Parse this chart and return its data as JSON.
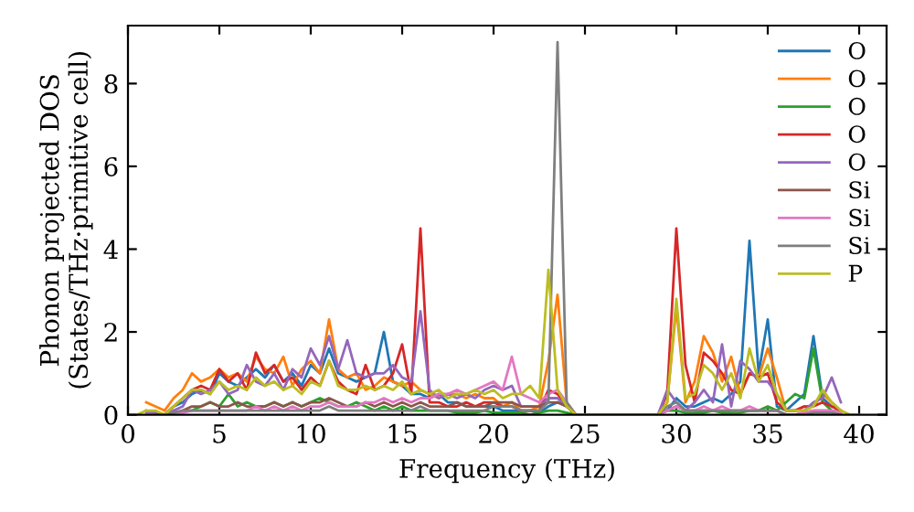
{
  "chart_data": {
    "type": "line",
    "xlabel": "Frequency (THz)",
    "ylabel": "Phonon projected DOS\n(States/THz·primitive cell)",
    "xlim": [
      0,
      41.5
    ],
    "ylim": [
      0,
      9.4
    ],
    "xticks": [
      0,
      5,
      10,
      15,
      20,
      25,
      30,
      35,
      40
    ],
    "yticks": [
      0,
      2,
      4,
      6,
      8
    ],
    "grid": false,
    "legend": "top right",
    "marker": "none",
    "line_style": "solid",
    "x": [
      0,
      0.5,
      1,
      1.5,
      2,
      2.5,
      3,
      3.5,
      4,
      4.5,
      5,
      5.5,
      6,
      6.5,
      7,
      7.5,
      8,
      8.5,
      9,
      9.5,
      10,
      10.5,
      11,
      11.5,
      12,
      12.5,
      13,
      13.5,
      14,
      14.5,
      15,
      15.5,
      16,
      16.5,
      17,
      17.5,
      18,
      18.5,
      19,
      19.5,
      20,
      20.5,
      21,
      21.5,
      22,
      22.5,
      23,
      23.5,
      24,
      24.5,
      25,
      25.5,
      26,
      26.5,
      27,
      27.5,
      28,
      28.5,
      29,
      29.5,
      30,
      30.5,
      31,
      31.5,
      32,
      32.5,
      33,
      33.5,
      34,
      34.5,
      35,
      35.5,
      36,
      36.5,
      37,
      37.5,
      38,
      38.5,
      39,
      39.5,
      40
    ],
    "series": [
      {
        "name": "O",
        "color": "#1f77b4",
        "values": [
          null,
          null,
          null,
          null,
          0,
          0.2,
          0.3,
          0.5,
          0.6,
          0.5,
          1.0,
          0.8,
          0.7,
          0.9,
          1.1,
          0.9,
          1.2,
          0.8,
          1.0,
          0.7,
          1.2,
          1.0,
          1.6,
          1.0,
          0.9,
          0.8,
          0.9,
          1.0,
          2.0,
          0.8,
          0.7,
          0.5,
          0.5,
          0.4,
          0.5,
          0.3,
          0.3,
          0.2,
          0.2,
          0.2,
          0.2,
          0.1,
          0.1,
          0.1,
          0.1,
          0.05,
          0.2,
          0.3,
          0.2,
          0,
          0,
          0,
          0,
          0,
          0,
          0,
          0,
          0,
          0,
          0.1,
          0.4,
          0.2,
          0.2,
          0.3,
          0.4,
          0.3,
          0.5,
          0.8,
          4.2,
          1.0,
          2.3,
          0.2,
          0.1,
          0.3,
          0.5,
          1.9,
          0.4,
          0.2,
          0.1,
          null,
          null
        ]
      },
      {
        "name": "O",
        "color": "#ff7f0e",
        "values": [
          null,
          null,
          0.3,
          0.2,
          0.1,
          0.4,
          0.6,
          1.0,
          0.8,
          0.9,
          1.1,
          0.9,
          1.0,
          0.8,
          1.4,
          1.1,
          1.0,
          1.4,
          0.7,
          1.1,
          1.3,
          1.0,
          2.3,
          1.1,
          0.9,
          1.0,
          0.6,
          0.7,
          0.9,
          0.8,
          0.7,
          0.8,
          0.6,
          0.5,
          0.4,
          0.5,
          0.5,
          0.4,
          0.5,
          0.4,
          0.4,
          0.2,
          0.3,
          0.1,
          0.1,
          0.2,
          1.3,
          2.9,
          0.3,
          0,
          0,
          0,
          0,
          0,
          0,
          0,
          0,
          0,
          0,
          0.3,
          2.6,
          0.3,
          0.8,
          1.9,
          1.5,
          0.8,
          1.4,
          0.5,
          1.0,
          0.9,
          1.6,
          0.9,
          0.1,
          0.1,
          0.2,
          0.2,
          0.5,
          0.3,
          0.1,
          null,
          null
        ]
      },
      {
        "name": "O",
        "color": "#2ca02c",
        "values": [
          null,
          null,
          null,
          null,
          null,
          null,
          0.1,
          0.1,
          0.2,
          0.3,
          0.2,
          0.5,
          0.2,
          0.3,
          0.2,
          0.2,
          0.3,
          0.2,
          0.3,
          0.2,
          0.3,
          0.4,
          0.3,
          0.2,
          0.2,
          0.3,
          0.2,
          0.1,
          0.2,
          0.1,
          0.2,
          0.1,
          0.1,
          0.1,
          0.1,
          0.1,
          0.05,
          0.05,
          0.05,
          0.1,
          0.05,
          0.05,
          0.05,
          0.05,
          0,
          0.05,
          0.1,
          0.1,
          0.05,
          0,
          0,
          0,
          0,
          0,
          0,
          0,
          0,
          0,
          0,
          0.1,
          0.1,
          0.05,
          0.05,
          0.05,
          0.1,
          0.05,
          0.05,
          0.05,
          0.1,
          0.1,
          0.2,
          0.1,
          0.3,
          0.5,
          0.4,
          1.6,
          0.3,
          0.1,
          0.05,
          null,
          null
        ]
      },
      {
        "name": "O",
        "color": "#d62728",
        "values": [
          null,
          null,
          0.1,
          0.05,
          0,
          0.2,
          0.4,
          0.6,
          0.7,
          0.6,
          1.1,
          0.8,
          1.0,
          0.6,
          1.5,
          1.0,
          1.2,
          0.8,
          0.9,
          0.6,
          0.9,
          0.7,
          1.3,
          0.8,
          0.6,
          0.5,
          1.2,
          0.6,
          0.7,
          1.0,
          1.7,
          0.5,
          4.5,
          0.3,
          0.3,
          0.2,
          0.2,
          0.3,
          0.2,
          0.3,
          0.3,
          0.2,
          0.2,
          0.1,
          0.1,
          0.1,
          0.6,
          0.5,
          0.2,
          0,
          0,
          0,
          0,
          0,
          0,
          0,
          0,
          0,
          0,
          0.5,
          4.5,
          1.2,
          0.3,
          1.5,
          1.3,
          1.0,
          0.6,
          0.5,
          1.0,
          0.9,
          1.0,
          0.3,
          0.1,
          0.1,
          0.2,
          0.2,
          0.3,
          0.2,
          0.1,
          null,
          null
        ]
      },
      {
        "name": "O",
        "color": "#9467bd",
        "values": [
          null,
          null,
          0.05,
          0.05,
          0,
          0.1,
          0.2,
          0.6,
          0.5,
          0.6,
          0.8,
          0.5,
          0.6,
          1.2,
          0.8,
          0.7,
          1.0,
          0.6,
          1.1,
          0.9,
          1.6,
          1.2,
          1.9,
          1.1,
          1.8,
          1.0,
          0.9,
          1.0,
          1.0,
          1.2,
          0.9,
          0.8,
          2.5,
          0.6,
          0.4,
          0.5,
          0.4,
          0.5,
          0.4,
          0.6,
          0.7,
          0.6,
          0.7,
          0.2,
          0.2,
          0.2,
          0.4,
          0.4,
          0.2,
          0,
          0,
          0,
          0,
          0,
          0,
          0,
          0,
          0,
          0,
          0.6,
          0.3,
          0.1,
          0.3,
          0.6,
          0.3,
          1.7,
          0.2,
          1.3,
          1.1,
          0.8,
          0.8,
          0.5,
          0.1,
          0.1,
          0.1,
          0.3,
          0.4,
          0.9,
          0.3,
          null,
          null
        ]
      },
      {
        "name": "Si",
        "color": "#8c564b",
        "values": [
          null,
          null,
          null,
          null,
          0,
          0.05,
          0.1,
          0.2,
          0.2,
          0.3,
          0.2,
          0.2,
          0.3,
          0.2,
          0.2,
          0.2,
          0.3,
          0.2,
          0.3,
          0.2,
          0.3,
          0.3,
          0.4,
          0.3,
          0.2,
          0.2,
          0.3,
          0.2,
          0.3,
          0.2,
          0.3,
          0.2,
          0.3,
          0.2,
          0.2,
          0.2,
          0.3,
          0.2,
          0.2,
          0.2,
          0.3,
          0.3,
          0.3,
          0.2,
          0.2,
          0.2,
          0.3,
          0.3,
          0.2,
          0,
          0,
          0,
          0,
          0,
          0,
          0,
          0,
          0,
          0,
          0.1,
          0.2,
          0.1,
          0.1,
          0.1,
          0.1,
          0.1,
          0.1,
          0.1,
          0.1,
          0.1,
          0.1,
          0.1,
          0,
          0,
          0.05,
          0.1,
          0.1,
          0.1,
          0.05,
          null,
          null
        ]
      },
      {
        "name": "Si",
        "color": "#e377c2",
        "values": [
          null,
          null,
          null,
          null,
          0,
          0.05,
          0.05,
          0.1,
          0.1,
          0.1,
          0.1,
          0.1,
          0.1,
          0.1,
          0.2,
          0.1,
          0.2,
          0.1,
          0.2,
          0.1,
          0.2,
          0.2,
          0.3,
          0.2,
          0.2,
          0.2,
          0.3,
          0.3,
          0.4,
          0.3,
          0.4,
          0.3,
          0.4,
          0.4,
          0.5,
          0.5,
          0.6,
          0.5,
          0.6,
          0.7,
          0.8,
          0.6,
          1.4,
          0.5,
          0.4,
          0.3,
          0.5,
          0.6,
          0.3,
          0,
          0,
          0,
          0,
          0,
          0,
          0,
          0,
          0,
          0,
          0.1,
          0.2,
          0.1,
          0.1,
          0.2,
          0.1,
          0.2,
          0.1,
          0.1,
          0.2,
          0.1,
          0.1,
          0.1,
          0,
          0,
          0.05,
          0.1,
          0.1,
          0.1,
          0.05,
          null,
          null
        ]
      },
      {
        "name": "Si",
        "color": "#7f7f7f",
        "values": [
          null,
          null,
          null,
          null,
          0,
          0.05,
          0.1,
          0.1,
          0.1,
          0.1,
          0.1,
          0.1,
          0.1,
          0.1,
          0.1,
          0.1,
          0.1,
          0.1,
          0.1,
          0.1,
          0.1,
          0.1,
          0.2,
          0.1,
          0.1,
          0.1,
          0.1,
          0.1,
          0.1,
          0.1,
          0.1,
          0.1,
          0.2,
          0.1,
          0.1,
          0.1,
          0.1,
          0.1,
          0.1,
          0.1,
          0.2,
          0.2,
          0.2,
          0.1,
          0.1,
          0.1,
          0.3,
          9.0,
          0.3,
          0,
          0,
          0,
          0,
          0,
          0,
          0,
          0,
          0,
          0,
          0.2,
          0.3,
          0.1,
          0.1,
          0.1,
          0.1,
          0.1,
          0.1,
          0.1,
          0.1,
          0.1,
          0.1,
          0.1,
          0,
          0,
          0,
          0.05,
          0.05,
          0.05,
          0,
          null,
          null
        ]
      },
      {
        "name": "P",
        "color": "#bcbd22",
        "values": [
          0,
          0,
          0.1,
          0.1,
          0,
          0.2,
          0.4,
          0.6,
          0.6,
          0.5,
          0.8,
          0.6,
          0.7,
          0.6,
          0.9,
          0.7,
          0.8,
          0.6,
          0.7,
          0.5,
          0.8,
          0.7,
          1.3,
          0.7,
          0.6,
          0.6,
          0.7,
          0.6,
          0.7,
          0.6,
          0.8,
          0.5,
          0.6,
          0.5,
          0.6,
          0.4,
          0.5,
          0.5,
          0.6,
          0.5,
          0.6,
          0.4,
          0.5,
          0.5,
          0.7,
          0.4,
          3.5,
          0.6,
          0.2,
          0,
          0,
          0,
          0,
          0,
          0,
          0,
          0,
          0,
          0,
          0.3,
          2.8,
          0.4,
          0.5,
          1.2,
          1.0,
          0.6,
          1.0,
          0.4,
          1.6,
          0.8,
          1.2,
          0.5,
          0.1,
          0.1,
          0.1,
          0.2,
          0.6,
          0.3,
          0.1,
          0,
          0
        ]
      }
    ]
  }
}
